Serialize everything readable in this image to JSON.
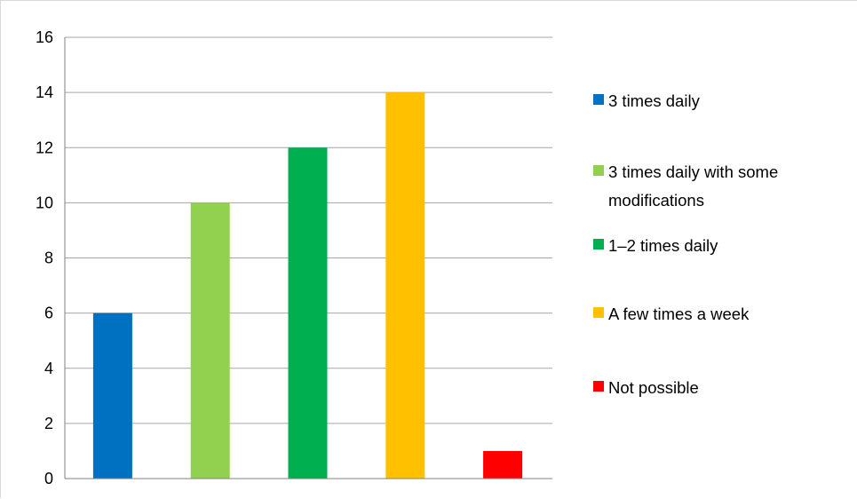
{
  "chart_data": {
    "type": "bar",
    "categories": [
      "3 times daily",
      "3 times daily with some modifications",
      "1–2 times daily",
      "A few times a week",
      "Not possible"
    ],
    "values": [
      6,
      10,
      12,
      14,
      1
    ],
    "colors": [
      "#0070c0",
      "#92d050",
      "#00b050",
      "#ffc000",
      "#ff0000"
    ],
    "ylim": [
      0,
      16
    ],
    "yticks": [
      0,
      2,
      4,
      6,
      8,
      10,
      12,
      14,
      16
    ],
    "grid": true,
    "legend_position": "right",
    "legend": [
      {
        "label_lines": [
          "3 times daily"
        ],
        "color": "#0070c0"
      },
      {
        "label_lines": [
          "3 times daily with some",
          "modifications"
        ],
        "color": "#92d050"
      },
      {
        "label_lines": [
          "1–2 times daily"
        ],
        "color": "#00b050"
      },
      {
        "label_lines": [
          "A few times a week"
        ],
        "color": "#ffc000"
      },
      {
        "label_lines": [
          "Not possible"
        ],
        "color": "#ff0000"
      }
    ]
  }
}
